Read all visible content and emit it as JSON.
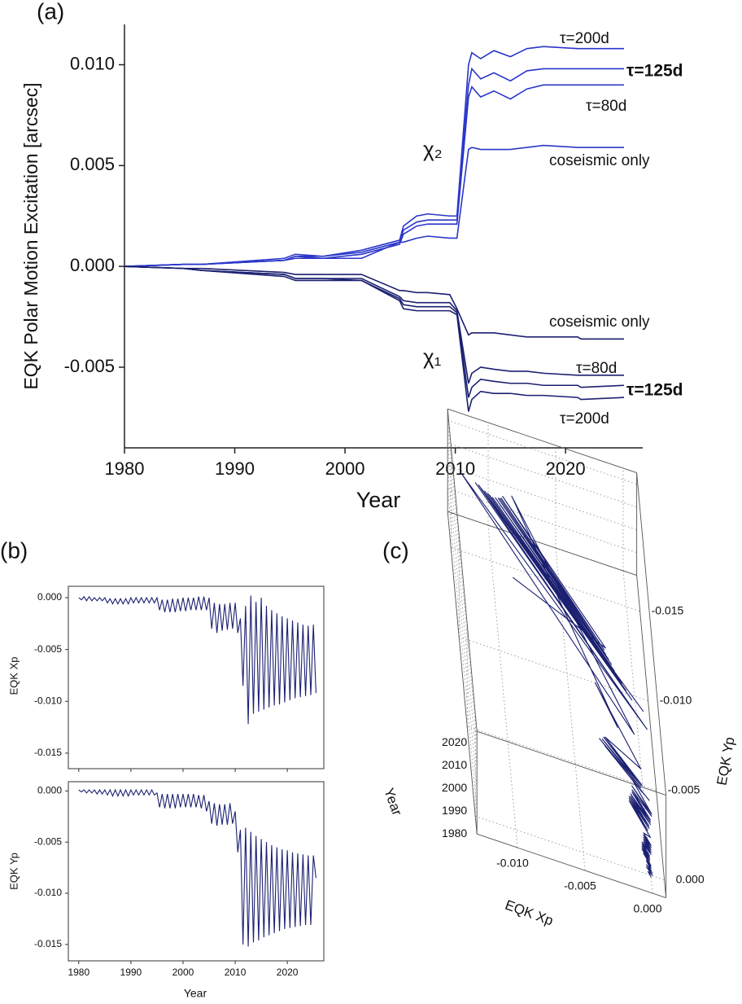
{
  "chart_data": [
    {
      "type": "line",
      "panel_label": "(a)",
      "xlabel": "Year",
      "ylabel": "EQK Polar Motion Excitation [arcsec]",
      "annotations": [
        "χ₂",
        "χ₁"
      ],
      "xlim": [
        1980,
        2027
      ],
      "ylim": [
        -0.009,
        0.012
      ],
      "xticks": [
        1980,
        1990,
        2000,
        2010,
        2020
      ],
      "yticks": [
        {
          "value": -0.005,
          "label": "-0.005"
        },
        {
          "value": 0,
          "label": "0.000"
        },
        {
          "value": 0.005,
          "label": "0.005"
        },
        {
          "value": 0.01,
          "label": "0.010"
        }
      ],
      "x": [
        1980,
        1985.3,
        1987,
        1994.5,
        1995.5,
        1998,
        2001.5,
        2004.95,
        2005.3,
        2006.5,
        2007.5,
        2009.5,
        2010.15,
        2011.2,
        2011.5,
        2012.3,
        2013.5,
        2015,
        2016.5,
        2018,
        2021.1,
        2021.4,
        2025.3
      ],
      "series": [
        {
          "name": "τ=200d",
          "color": "#2b36c9",
          "values": [
            0,
            0.0001,
            0.0001,
            0.0004,
            0.0006,
            0.0005,
            0.0008,
            0.0013,
            0.002,
            0.0025,
            0.0026,
            0.0025,
            0.0025,
            0.01,
            0.0106,
            0.0103,
            0.0107,
            0.0104,
            0.0108,
            0.0109,
            0.0108,
            0.0108,
            0.0108
          ]
        },
        {
          "name": "τ=125d",
          "color": "#2b36c9",
          "values": [
            0,
            0.0001,
            0.0001,
            0.0003,
            0.0005,
            0.0005,
            0.0007,
            0.0012,
            0.0018,
            0.0022,
            0.0023,
            0.0023,
            0.0023,
            0.009,
            0.0098,
            0.0093,
            0.0096,
            0.0092,
            0.0097,
            0.0098,
            0.0098,
            0.0098,
            0.0098
          ]
        },
        {
          "name": "τ=80d",
          "color": "#2b36c9",
          "values": [
            0,
            0.0001,
            0.0001,
            0.0003,
            0.0005,
            0.0004,
            0.0006,
            0.0011,
            0.0016,
            0.002,
            0.0021,
            0.0021,
            0.0021,
            0.0084,
            0.0089,
            0.0084,
            0.0087,
            0.0083,
            0.0088,
            0.009,
            0.009,
            0.009,
            0.009
          ]
        },
        {
          "name": "coseismic only",
          "color": "#2b36c9",
          "values": [
            0,
            0.0001,
            0.0001,
            0.0003,
            0.0004,
            0.0004,
            0.0004,
            0.0012,
            0.0012,
            0.0014,
            0.0015,
            0.0014,
            0.0014,
            0.0058,
            0.0059,
            0.0058,
            0.0058,
            0.0058,
            0.0059,
            0.006,
            0.0059,
            0.0059,
            0.0059
          ]
        },
        {
          "name": "coseismic only",
          "color": "#1b2070",
          "values": [
            0,
            -0.0001,
            -0.0001,
            -0.0003,
            -0.0004,
            -0.0004,
            -0.0004,
            -0.0012,
            -0.0012,
            -0.0013,
            -0.0013,
            -0.0014,
            -0.0021,
            -0.0034,
            -0.0033,
            -0.0033,
            -0.0033,
            -0.0034,
            -0.0035,
            -0.0035,
            -0.0035,
            -0.0036,
            -0.0036
          ]
        },
        {
          "name": "τ=80d",
          "color": "#1b2070",
          "values": [
            0,
            -0.0001,
            -0.0002,
            -0.0004,
            -0.0006,
            -0.0006,
            -0.0006,
            -0.0015,
            -0.0017,
            -0.0018,
            -0.0018,
            -0.0018,
            -0.0022,
            -0.0058,
            -0.0053,
            -0.005,
            -0.0051,
            -0.0052,
            -0.0052,
            -0.0053,
            -0.0054,
            -0.0054,
            -0.0054
          ]
        },
        {
          "name": "τ=125d",
          "color": "#1b2070",
          "values": [
            0,
            -0.0001,
            -0.0002,
            -0.0004,
            -0.0006,
            -0.0006,
            -0.0007,
            -0.0016,
            -0.0019,
            -0.002,
            -0.002,
            -0.002,
            -0.0023,
            -0.0065,
            -0.006,
            -0.0056,
            -0.0057,
            -0.0058,
            -0.0058,
            -0.0059,
            -0.0059,
            -0.006,
            -0.0059
          ]
        },
        {
          "name": "τ=200d",
          "color": "#1b2070",
          "values": [
            0,
            -0.0001,
            -0.0002,
            -0.0005,
            -0.0007,
            -0.0007,
            -0.0007,
            -0.0017,
            -0.0021,
            -0.0022,
            -0.0022,
            -0.0022,
            -0.0024,
            -0.0072,
            -0.0066,
            -0.0062,
            -0.0063,
            -0.0063,
            -0.0064,
            -0.0064,
            -0.0065,
            -0.0066,
            -0.0065
          ]
        }
      ]
    },
    {
      "type": "line",
      "panel_label": "(b)",
      "xlabel": "Year",
      "color": "#1b2070",
      "xlim": [
        1978,
        2027
      ],
      "xticks": [
        1980,
        1990,
        2000,
        2010,
        2020
      ],
      "x": [
        1980,
        1980.5,
        1981,
        1981.5,
        1982,
        1982.5,
        1983,
        1983.5,
        1984,
        1984.5,
        1985,
        1985.5,
        1986,
        1986.5,
        1987,
        1987.5,
        1988,
        1988.5,
        1989,
        1989.5,
        1990,
        1990.5,
        1991,
        1991.5,
        1992,
        1992.5,
        1993,
        1993.5,
        1994,
        1994.5,
        1995,
        1995.5,
        1996,
        1996.5,
        1997,
        1997.5,
        1998,
        1998.5,
        1999,
        1999.5,
        2000,
        2000.5,
        2001,
        2001.5,
        2002,
        2002.5,
        2003,
        2003.5,
        2004,
        2004.5,
        2005,
        2005.5,
        2006,
        2006.5,
        2007,
        2007.5,
        2008,
        2008.5,
        2009,
        2009.5,
        2010,
        2010.5,
        2011,
        2011.5,
        2012,
        2012.5,
        2013,
        2013.5,
        2014,
        2014.5,
        2015,
        2015.5,
        2016,
        2016.5,
        2017,
        2017.5,
        2018,
        2018.5,
        2019,
        2019.5,
        2020,
        2020.5,
        2021,
        2021.5,
        2022,
        2022.5,
        2023,
        2023.5,
        2024,
        2024.5,
        2025,
        2025.5
      ],
      "panels": [
        {
          "ylabel": "EQK Xp",
          "ylim": [
            -0.0165,
            0.0011
          ],
          "yticks": [
            {
              "value": -0.015,
              "label": "-0.015"
            },
            {
              "value": -0.01,
              "label": "-0.010"
            },
            {
              "value": -0.005,
              "label": "-0.005"
            },
            {
              "value": 0,
              "label": "0.000"
            }
          ],
          "values": [
            0.0,
            -0.0002,
            0.0001,
            -0.0003,
            0.0001,
            -0.0003,
            0.0,
            -0.0003,
            0.0,
            -0.0003,
            0.0,
            -0.0005,
            -0.0001,
            -0.0006,
            -0.0001,
            -0.0006,
            -0.0001,
            -0.0006,
            -0.0001,
            -0.0006,
            0.0,
            -0.0005,
            0.0,
            -0.0005,
            0.0,
            -0.0005,
            0.0,
            -0.0005,
            0.0,
            -0.0005,
            0.0,
            -0.0012,
            -0.0002,
            -0.0014,
            -0.0002,
            -0.0014,
            -0.0001,
            -0.0014,
            -0.0001,
            -0.0013,
            0.0,
            -0.0013,
            0.0,
            -0.0012,
            0.0,
            -0.0012,
            0.0001,
            -0.0012,
            0.0001,
            -0.0012,
            0.0,
            -0.003,
            -0.0005,
            -0.0034,
            -0.0006,
            -0.0032,
            -0.0006,
            -0.0031,
            -0.0005,
            -0.003,
            -0.0005,
            -0.0034,
            -0.002,
            -0.0085,
            -0.0008,
            -0.0122,
            0.0002,
            -0.0112,
            -0.0004,
            -0.011,
            0.0,
            -0.0108,
            -0.0008,
            -0.0106,
            -0.0012,
            -0.0104,
            -0.0015,
            -0.0103,
            -0.0018,
            -0.0101,
            -0.002,
            -0.0099,
            -0.0022,
            -0.0097,
            -0.0024,
            -0.0096,
            -0.0026,
            -0.0095,
            -0.0027,
            -0.0094,
            -0.0026,
            -0.0092
          ]
        },
        {
          "ylabel": "EQK Yp",
          "ylim": [
            -0.0166,
            0.0009
          ],
          "yticks": [
            {
              "value": -0.015,
              "label": "-0.015"
            },
            {
              "value": -0.01,
              "label": "-0.010"
            },
            {
              "value": -0.005,
              "label": "-0.005"
            },
            {
              "value": 0,
              "label": "0.000"
            }
          ],
          "values": [
            0.0001,
            -0.0001,
            0.0001,
            -0.0002,
            0.0001,
            -0.0002,
            0.0001,
            -0.0003,
            0.0001,
            -0.0003,
            0.0001,
            -0.0004,
            0.0001,
            -0.0005,
            0.0001,
            -0.0005,
            0.0001,
            -0.0005,
            0.0001,
            -0.0005,
            0.0001,
            -0.0004,
            0.0001,
            -0.0004,
            0.0001,
            -0.0004,
            0.0001,
            -0.0004,
            0.0001,
            -0.0004,
            -0.0002,
            -0.0016,
            -0.0003,
            -0.0017,
            -0.0003,
            -0.0017,
            -0.0003,
            -0.0017,
            -0.0003,
            -0.0016,
            -0.0003,
            -0.0016,
            -0.0003,
            -0.0016,
            -0.0003,
            -0.0016,
            -0.0004,
            -0.0017,
            -0.0004,
            -0.002,
            -0.001,
            -0.0032,
            -0.0012,
            -0.0034,
            -0.0013,
            -0.0033,
            -0.0013,
            -0.0033,
            -0.0012,
            -0.0032,
            -0.002,
            -0.006,
            -0.0038,
            -0.015,
            -0.0036,
            -0.0152,
            -0.004,
            -0.0148,
            -0.0044,
            -0.0146,
            -0.0047,
            -0.0143,
            -0.005,
            -0.0141,
            -0.0053,
            -0.0139,
            -0.0055,
            -0.0137,
            -0.0057,
            -0.0135,
            -0.0058,
            -0.0134,
            -0.006,
            -0.0133,
            -0.0061,
            -0.0132,
            -0.0062,
            -0.0131,
            -0.0063,
            -0.0131,
            -0.0063,
            -0.0085
          ]
        }
      ]
    },
    {
      "type": "line3d",
      "panel_label": "(c)",
      "xlabel": "EQK Xp",
      "ylabel": "EQK Yp",
      "zlabel": "Year",
      "color": "#1b2070",
      "xlim": [
        -0.013,
        0.001
      ],
      "ylim": [
        -0.017,
        0.001
      ],
      "zlim": [
        1980,
        2025
      ],
      "xticks": [
        {
          "value": -0.01,
          "label": "-0.010"
        },
        {
          "value": -0.005,
          "label": "-0.005"
        },
        {
          "value": 0,
          "label": "0.000"
        }
      ],
      "yticks": [
        {
          "value": -0.015,
          "label": "-0.015"
        },
        {
          "value": -0.01,
          "label": "-0.010"
        },
        {
          "value": -0.005,
          "label": "-0.005"
        },
        {
          "value": 0,
          "label": "0.000"
        }
      ],
      "zticks": [
        1980,
        1990,
        2000,
        2010,
        2020
      ]
    }
  ]
}
